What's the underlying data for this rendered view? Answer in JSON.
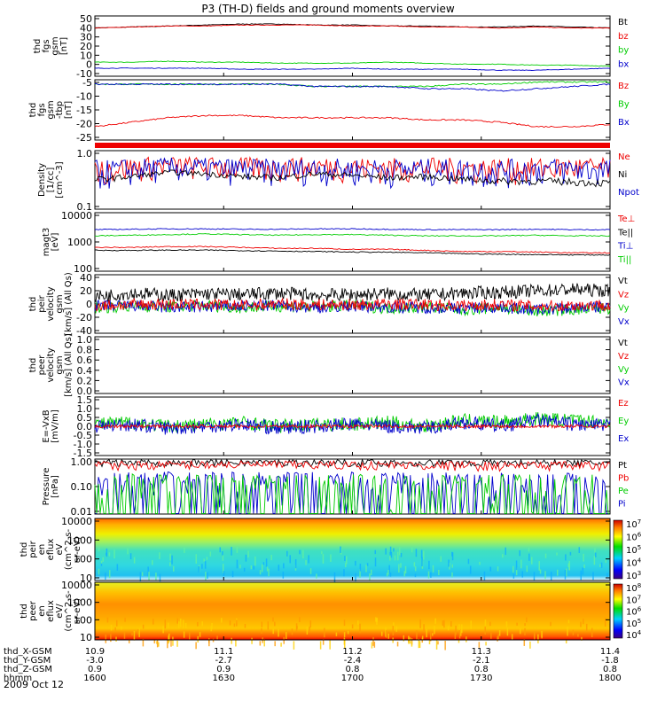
{
  "title": "P3 (TH-D) fields and ground moments overview",
  "date": "2009 Oct 12",
  "colors": {
    "black": "#000000",
    "red": "#ee0000",
    "green": "#00cc00",
    "blue": "#0000cc"
  },
  "chart_data": {
    "type": "line",
    "x_ticks": [
      "1600",
      "1630",
      "1700",
      "1730",
      "1800"
    ],
    "ephemeris": [
      {
        "label": "thd_X-GSM",
        "values": [
          "10.9",
          "11.1",
          "11.2",
          "11.3",
          "11.4"
        ]
      },
      {
        "label": "thd_Y-GSM",
        "values": [
          "-3.0",
          "-2.7",
          "-2.4",
          "-2.1",
          "-1.8"
        ]
      },
      {
        "label": "thd_Z-GSM",
        "values": [
          "0.9",
          "0.9",
          "0.8",
          "0.8",
          "0.8"
        ]
      },
      {
        "label": "hhmm",
        "values": [
          "1600",
          "1630",
          "1700",
          "1730",
          "1800"
        ]
      }
    ],
    "panels": [
      {
        "ylabel": [
          "thd",
          "fgs",
          "gsm",
          "[nT]"
        ],
        "ylim": [
          -10,
          50
        ],
        "yticks": [
          "50",
          "40",
          "30",
          "20",
          "10",
          "0",
          "-10"
        ],
        "legend": [
          {
            "name": "Bt",
            "color": "#000000"
          },
          {
            "name": "bz",
            "color": "#ee0000"
          },
          {
            "name": "by",
            "color": "#00cc00"
          },
          {
            "name": "bx",
            "color": "#0000cc"
          }
        ],
        "series": [
          {
            "name": "Bt",
            "color": "#000000",
            "values": [
              38,
              39,
              40,
              41,
              42,
              42,
              41,
              41,
              40,
              40,
              39,
              39,
              40,
              39,
              38
            ]
          },
          {
            "name": "bz",
            "color": "#ee0000",
            "values": [
              38,
              39,
              40,
              40,
              41,
              41,
              41,
              40,
              40,
              39,
              39,
              38,
              39,
              38,
              38
            ]
          },
          {
            "name": "by",
            "color": "#00cc00",
            "values": [
              4,
              4,
              5,
              4,
              4,
              3,
              3,
              3,
              4,
              3,
              2,
              2,
              1,
              1,
              0
            ]
          },
          {
            "name": "bx",
            "color": "#0000cc",
            "values": [
              -2,
              -2,
              -2,
              -2,
              -3,
              -3,
              -3,
              -2,
              -3,
              -3,
              -3,
              -4,
              -4,
              -3,
              -2
            ]
          }
        ]
      },
      {
        "ylabel": [
          "thd",
          "fgs",
          "gsm",
          "-tbp",
          "[nT]"
        ],
        "ylim": [
          -27,
          0
        ],
        "yticks": [
          "-5",
          "-10",
          "-15",
          "-20",
          "-25"
        ],
        "legend": [
          {
            "name": "Bz",
            "color": "#ee0000"
          },
          {
            "name": "By",
            "color": "#00cc00"
          },
          {
            "name": "Bx",
            "color": "#0000cc"
          }
        ],
        "series": [
          {
            "name": "Bz",
            "color": "#ee0000",
            "values": [
              -21,
              -19,
              -17,
              -16,
              -16,
              -17,
              -17,
              -17,
              -17,
              -18,
              -18,
              -19,
              -21,
              -21,
              -20
            ]
          },
          {
            "name": "By",
            "color": "#00cc00",
            "values": [
              -2,
              -2,
              -2,
              -2,
              -2,
              -2,
              -3,
              -3,
              -3,
              -3,
              -2,
              -2,
              -1,
              -1,
              -1
            ]
          },
          {
            "name": "Bx",
            "color": "#0000cc",
            "values": [
              -2,
              -2,
              -2,
              -2,
              -2,
              -2,
              -3,
              -3,
              -3,
              -4,
              -4,
              -5,
              -4,
              -3,
              -2
            ]
          }
        ]
      },
      {
        "ylabel": [
          "Density",
          "[1/cc]",
          "[cm^-3]"
        ],
        "scale": "log",
        "ylim": [
          0.1,
          1.2
        ],
        "yticks": [
          "1.0",
          "0.1"
        ],
        "legend": [
          {
            "name": "Ne",
            "color": "#ee0000"
          },
          {
            "name": "Ni",
            "color": "#000000"
          },
          {
            "name": "Npot",
            "color": "#0000cc"
          }
        ],
        "series": [
          {
            "name": "Ne",
            "color": "#ee0000",
            "values": [
              0.55,
              0.6,
              0.65,
              0.62,
              0.6,
              0.6,
              0.62,
              0.6,
              0.58,
              0.6,
              0.58,
              0.57,
              0.58,
              0.6,
              0.58
            ]
          },
          {
            "name": "Npot",
            "color": "#0000cc",
            "values": [
              0.5,
              0.55,
              0.6,
              0.58,
              0.56,
              0.55,
              0.57,
              0.55,
              0.54,
              0.55,
              0.54,
              0.53,
              0.55,
              0.56,
              0.55
            ]
          },
          {
            "name": "Ni",
            "color": "#000000",
            "values": [
              0.35,
              0.4,
              0.48,
              0.45,
              0.4,
              0.38,
              0.45,
              0.42,
              0.38,
              0.4,
              0.36,
              0.33,
              0.33,
              0.32,
              0.3
            ]
          }
        ]
      },
      {
        "ylabel": [
          "magt3",
          "[eV]"
        ],
        "scale": "log",
        "ylim": [
          100,
          12000
        ],
        "yticks": [
          "10000",
          "1000",
          "100"
        ],
        "legend": [
          {
            "name": "Te⊥",
            "color": "#ee0000"
          },
          {
            "name": "Te||",
            "color": "#000000"
          },
          {
            "name": "Ti⊥",
            "color": "#0000cc"
          },
          {
            "name": "Ti||",
            "color": "#00cc00"
          }
        ],
        "series": [
          {
            "name": "Ti⊥",
            "color": "#0000cc",
            "values": [
              3000,
              3100,
              3200,
              3200,
              3100,
              3100,
              3200,
              3200,
              3100,
              3000,
              3000,
              3000,
              3100,
              3000,
              3000
            ]
          },
          {
            "name": "Ti||",
            "color": "#00cc00",
            "values": [
              1800,
              1900,
              2000,
              2100,
              2000,
              1900,
              2000,
              2000,
              1900,
              1800,
              1800,
              1800,
              1900,
              1800,
              1800
            ]
          },
          {
            "name": "Te⊥",
            "color": "#ee0000",
            "values": [
              700,
              700,
              750,
              750,
              700,
              650,
              650,
              600,
              600,
              550,
              500,
              500,
              480,
              450,
              450
            ]
          },
          {
            "name": "Te||",
            "color": "#000000",
            "values": [
              550,
              550,
              560,
              560,
              540,
              520,
              500,
              480,
              470,
              450,
              420,
              400,
              390,
              380,
              380
            ]
          }
        ]
      },
      {
        "ylabel": [
          "thd",
          "peir",
          "velocity",
          "gsm",
          "[km/s] (All Qs)"
        ],
        "ylim": [
          -40,
          40
        ],
        "yticks": [
          "40",
          "20",
          "0",
          "-20",
          "-40"
        ],
        "legend": [
          {
            "name": "Vt",
            "color": "#000000"
          },
          {
            "name": "Vz",
            "color": "#ee0000"
          },
          {
            "name": "Vy",
            "color": "#00cc00"
          },
          {
            "name": "Vx",
            "color": "#0000cc"
          }
        ],
        "series": [
          {
            "name": "Vt",
            "color": "#000000",
            "values": [
              10,
              15,
              12,
              14,
              13,
              15,
              12,
              13,
              14,
              12,
              15,
              16,
              18,
              20,
              18
            ]
          },
          {
            "name": "Vy",
            "color": "#00cc00",
            "values": [
              -5,
              -3,
              -4,
              -2,
              -5,
              -3,
              -4,
              -2,
              -6,
              -4,
              -8,
              -5,
              -10,
              -8,
              -6
            ]
          },
          {
            "name": "Vx",
            "color": "#0000cc",
            "values": [
              -3,
              -2,
              -5,
              -4,
              -3,
              -2,
              -5,
              -3,
              -4,
              -5,
              -6,
              -4,
              -8,
              -5,
              -4
            ]
          },
          {
            "name": "Vz",
            "color": "#ee0000",
            "values": [
              -2,
              -1,
              0,
              -1,
              -2,
              0,
              -1,
              -1,
              0,
              -1,
              -2,
              -1,
              -3,
              -2,
              -1
            ]
          }
        ]
      },
      {
        "ylabel": [
          "thd",
          "peer",
          "velocity",
          "gsm",
          "[km/s] (All Qs)"
        ],
        "ylim": [
          0,
          1
        ],
        "yticks": [
          "1.0",
          "0.8",
          "0.6",
          "0.4",
          "0.2",
          "0.0"
        ],
        "legend": [
          {
            "name": "Vt",
            "color": "#000000"
          },
          {
            "name": "Vz",
            "color": "#ee0000"
          },
          {
            "name": "Vy",
            "color": "#00cc00"
          },
          {
            "name": "Vx",
            "color": "#0000cc"
          }
        ],
        "series": []
      },
      {
        "ylabel": [
          "E=-VxB",
          "[mV/m]"
        ],
        "ylim": [
          -1.5,
          1.5
        ],
        "yticks": [
          "1.5",
          "1.0",
          "0.5",
          "0.0",
          "-0.5",
          "-1.0",
          "-1.5"
        ],
        "legend": [
          {
            "name": "Ez",
            "color": "#ee0000"
          },
          {
            "name": "Ey",
            "color": "#00cc00"
          },
          {
            "name": "Ex",
            "color": "#0000cc"
          }
        ],
        "series": [
          {
            "name": "Ey",
            "color": "#00cc00",
            "values": [
              0.1,
              0.2,
              0,
              0.1,
              0.2,
              0,
              0.1,
              0.1,
              0.2,
              0,
              0.3,
              0.2,
              0.4,
              0.3,
              0.2
            ]
          },
          {
            "name": "Ex",
            "color": "#0000cc",
            "values": [
              0,
              0.1,
              -0.1,
              0,
              0.1,
              -0.1,
              0,
              0.1,
              0,
              -0.1,
              0.2,
              0,
              0.3,
              0.1,
              0
            ]
          },
          {
            "name": "Ez",
            "color": "#ee0000",
            "values": [
              0,
              0,
              0,
              0,
              0,
              0,
              0,
              0,
              0,
              0,
              0,
              0,
              0,
              0,
              0
            ]
          }
        ]
      },
      {
        "ylabel": [
          "Pressure",
          "[nPa]"
        ],
        "scale": "log",
        "ylim": [
          0.01,
          1.3
        ],
        "yticks": [
          "1.00",
          "0.10",
          "0.01"
        ],
        "legend": [
          {
            "name": "Pt",
            "color": "#000000"
          },
          {
            "name": "Pb",
            "color": "#ee0000"
          },
          {
            "name": "Pe",
            "color": "#00cc00"
          },
          {
            "name": "Pi",
            "color": "#0000cc"
          }
        ],
        "series": [
          {
            "name": "Pt",
            "color": "#000000",
            "values": [
              0.95,
              0.95,
              0.97,
              0.98,
              0.98,
              0.97,
              0.97,
              0.96,
              0.96,
              0.95,
              0.95,
              0.94,
              0.95,
              0.94,
              0.94
            ]
          },
          {
            "name": "Pb",
            "color": "#ee0000",
            "values": [
              0.75,
              0.78,
              0.8,
              0.82,
              0.82,
              0.8,
              0.8,
              0.78,
              0.78,
              0.76,
              0.75,
              0.74,
              0.76,
              0.74,
              0.72
            ]
          },
          {
            "name": "Pi",
            "color": "#0000cc",
            "values": [
              0.13,
              0.12,
              0.12,
              0.12,
              0.11,
              0.11,
              0.11,
              0.11,
              0.1,
              0.1,
              0.1,
              0.09,
              0.09,
              0.09,
              0.08
            ]
          },
          {
            "name": "Pe",
            "color": "#00cc00",
            "values": [
              0.05,
              0.05,
              0.045,
              0.045,
              0.04,
              0.04,
              0.04,
              0.04,
              0.035,
              0.035,
              0.03,
              0.03,
              0.03,
              0.03,
              0.03
            ]
          }
        ]
      },
      {
        "type": "spectrogram",
        "ylabel": [
          "thd",
          "peir",
          "en",
          "eflux",
          "eV",
          "(cm^2-s-",
          "sr-eV)"
        ],
        "yticks": [
          "10000",
          "1000",
          "100",
          "10"
        ],
        "colorbar": [
          "10^7",
          "10^6",
          "10^5",
          "10^4",
          "10^3"
        ]
      },
      {
        "type": "spectrogram",
        "ylabel": [
          "thd",
          "peer",
          "en",
          "eflux",
          "eV/",
          "(cm^2-s-",
          "sr-eV)"
        ],
        "yticks": [
          "10000",
          "1000",
          "100",
          "10"
        ],
        "colorbar": [
          "10^8",
          "10^7",
          "10^6",
          "10^5",
          "10^4"
        ]
      }
    ]
  }
}
